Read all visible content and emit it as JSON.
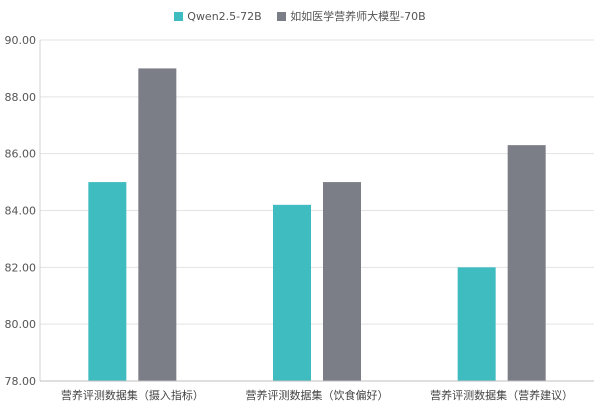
{
  "chart_data": {
    "type": "bar",
    "categories": [
      "营养评测数据集（摄入指标）",
      "营养评测数据集（饮食偏好）",
      "营养评测数据集（营养建议）"
    ],
    "series": [
      {
        "name": "Qwen2.5-72B",
        "color": "#3fbcc0",
        "values": [
          85.0,
          84.2,
          82.0
        ]
      },
      {
        "name": "如如医学营养师大模型-70B",
        "color": "#7b7d87",
        "values": [
          89.0,
          85.0,
          86.3
        ]
      }
    ],
    "ylim": [
      78.0,
      90.0
    ],
    "yticks": [
      "78.00",
      "80.00",
      "82.00",
      "84.00",
      "86.00",
      "88.00",
      "90.00"
    ],
    "grid": true,
    "legend_position": "top-center"
  }
}
